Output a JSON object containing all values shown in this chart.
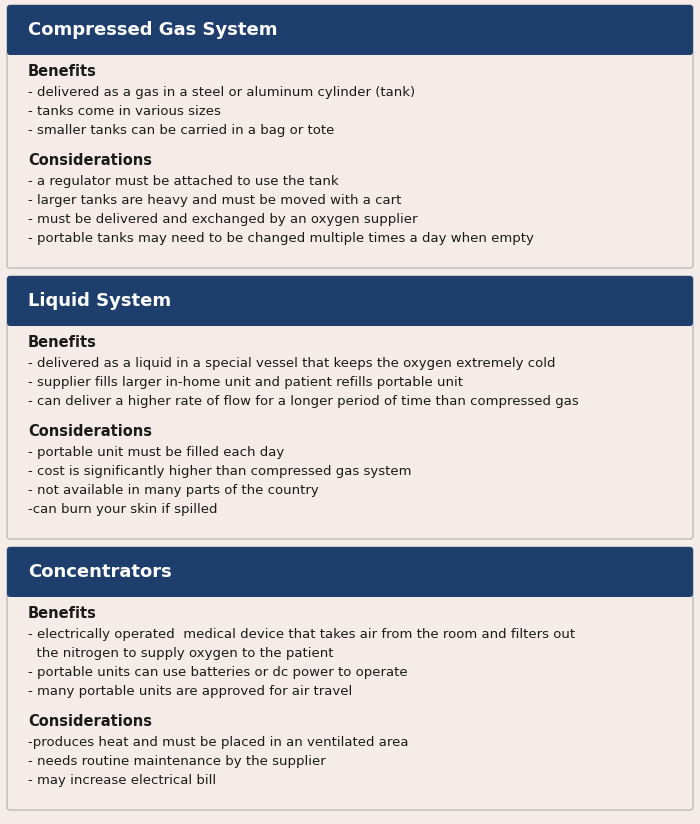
{
  "bg_color": "#f5ece9",
  "header_color": "#1e3f6e",
  "header_text_color": "#ffffff",
  "body_text_color": "#1a1a1a",
  "sections": [
    {
      "title": "Compressed Gas System",
      "benefits_title": "Benefits",
      "benefits": [
        "- delivered as a gas in a steel or aluminum cylinder (tank)",
        "- tanks come in various sizes",
        "- smaller tanks can be carried in a bag or tote"
      ],
      "considerations_title": "Considerations",
      "considerations": [
        "- a regulator must be attached to use the tank",
        "- larger tanks are heavy and must be moved with a cart",
        "- must be delivered and exchanged by an oxygen supplier",
        "- portable tanks may need to be changed multiple times a day when empty"
      ]
    },
    {
      "title": "Liquid System",
      "benefits_title": "Benefits",
      "benefits": [
        "- delivered as a liquid in a special vessel that keeps the oxygen extremely cold",
        "- supplier fills larger in-home unit and patient refills portable unit",
        "- can deliver a higher rate of flow for a longer period of time than compressed gas"
      ],
      "considerations_title": "Considerations",
      "considerations": [
        "- portable unit must be filled each day",
        "- cost is significantly higher than compressed gas system",
        "- not available in many parts of the country",
        "-can burn your skin if spilled"
      ]
    },
    {
      "title": "Concentrators",
      "benefits_title": "Benefits",
      "benefits": [
        "- electrically operated  medical device that takes air from the room and filters out\n  the nitrogen to supply oxygen to the patient",
        "- portable units can use batteries or dc power to operate",
        "- many portable units are approved for air travel"
      ],
      "considerations_title": "Considerations",
      "considerations": [
        "-produces heat and must be placed in an ventilated area",
        "- needs routine maintenance by the supplier",
        "- may increase electrical bill"
      ]
    }
  ],
  "font_size_header": 13,
  "font_size_subheader": 10.5,
  "font_size_body": 9.5
}
